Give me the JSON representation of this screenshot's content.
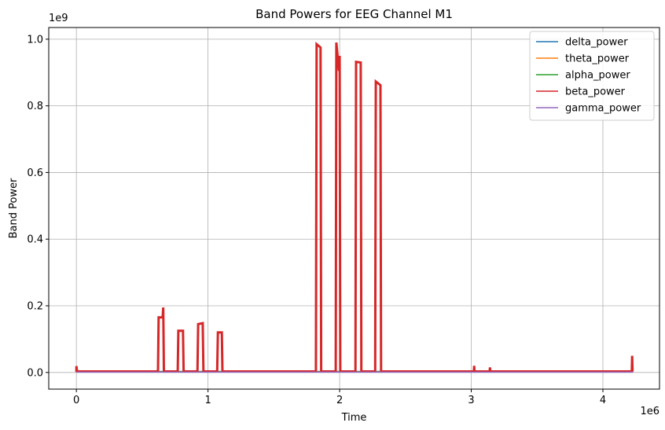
{
  "chart_data": {
    "type": "line",
    "title": "Band Powers for EEG Channel M1",
    "xlabel": "Time",
    "ylabel": "Band Power",
    "x_offset_text": "1e6",
    "y_offset_text": "1e9",
    "xlim": [
      -0.21,
      4.43
    ],
    "ylim": [
      -0.05,
      1.035
    ],
    "x_ticks": [
      0,
      1,
      2,
      3,
      4
    ],
    "x_tick_labels": [
      "0",
      "1",
      "2",
      "3",
      "4"
    ],
    "y_ticks": [
      0.0,
      0.2,
      0.4,
      0.6,
      0.8,
      1.0
    ],
    "y_tick_labels": [
      "0.0",
      "0.2",
      "0.4",
      "0.6",
      "0.8",
      "1.0"
    ],
    "grid": true,
    "legend_position": "top-right",
    "series": [
      {
        "name": "delta_power",
        "color": "#1f77b4",
        "points": [
          [
            0,
            0.003
          ],
          [
            4.23,
            0.003
          ]
        ]
      },
      {
        "name": "theta_power",
        "color": "#ff7f0e",
        "points": [
          [
            0,
            0.002
          ],
          [
            4.23,
            0.002
          ]
        ]
      },
      {
        "name": "alpha_power",
        "color": "#2ca02c",
        "points": [
          [
            0,
            0.002
          ],
          [
            4.23,
            0.002
          ]
        ]
      },
      {
        "name": "beta_power",
        "color": "#d62728",
        "points": [
          [
            0.0,
            0.002
          ],
          [
            0.0,
            0.019
          ],
          [
            0.005,
            0.003
          ],
          [
            0.62,
            0.003
          ],
          [
            0.625,
            0.165
          ],
          [
            0.655,
            0.165
          ],
          [
            0.66,
            0.195
          ],
          [
            0.665,
            0.003
          ],
          [
            0.77,
            0.003
          ],
          [
            0.775,
            0.125
          ],
          [
            0.81,
            0.125
          ],
          [
            0.815,
            0.003
          ],
          [
            0.92,
            0.003
          ],
          [
            0.925,
            0.145
          ],
          [
            0.96,
            0.148
          ],
          [
            0.965,
            0.003
          ],
          [
            1.07,
            0.003
          ],
          [
            1.075,
            0.12
          ],
          [
            1.105,
            0.12
          ],
          [
            1.11,
            0.003
          ],
          [
            1.82,
            0.003
          ],
          [
            1.825,
            0.985
          ],
          [
            1.855,
            0.975
          ],
          [
            1.86,
            0.003
          ],
          [
            1.97,
            0.003
          ],
          [
            1.975,
            0.99
          ],
          [
            1.995,
            0.905
          ],
          [
            2.0,
            0.95
          ],
          [
            2.005,
            0.003
          ],
          [
            2.12,
            0.003
          ],
          [
            2.125,
            0.932
          ],
          [
            2.16,
            0.93
          ],
          [
            2.165,
            0.003
          ],
          [
            2.27,
            0.003
          ],
          [
            2.275,
            0.873
          ],
          [
            2.31,
            0.862
          ],
          [
            2.315,
            0.003
          ],
          [
            3.02,
            0.003
          ],
          [
            3.022,
            0.02
          ],
          [
            3.025,
            0.003
          ],
          [
            3.14,
            0.003
          ],
          [
            3.142,
            0.015
          ],
          [
            3.145,
            0.003
          ],
          [
            4.22,
            0.003
          ],
          [
            4.222,
            0.05
          ],
          [
            4.225,
            0.003
          ],
          [
            4.23,
            0.003
          ]
        ]
      },
      {
        "name": "gamma_power",
        "color": "#9467bd",
        "points": [
          [
            0,
            0.001
          ],
          [
            4.23,
            0.001
          ]
        ]
      }
    ]
  }
}
